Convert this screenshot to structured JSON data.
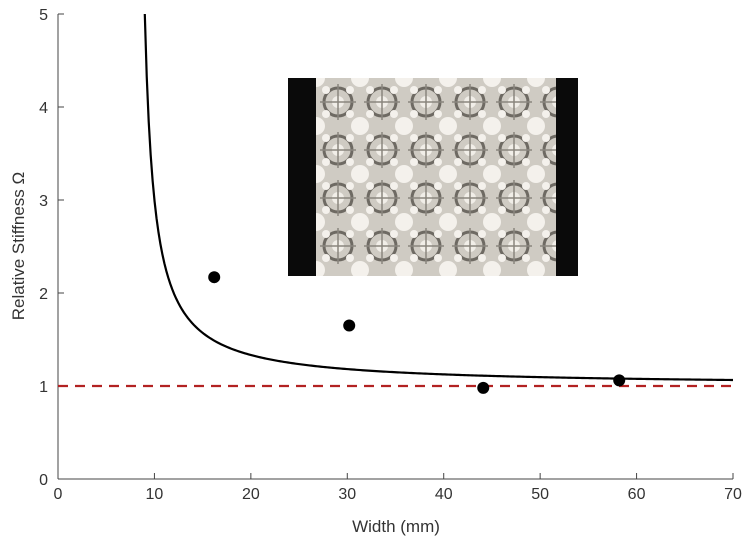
{
  "chart_data": {
    "type": "scatter",
    "xlabel": "Width (mm)",
    "ylabel": "Relative Stiffness Ω",
    "xlim": [
      0,
      70
    ],
    "ylim": [
      0,
      5
    ],
    "x_ticks": [
      0,
      10,
      20,
      30,
      40,
      50,
      60,
      70
    ],
    "y_ticks": [
      0,
      1,
      2,
      3,
      4,
      5
    ],
    "grid": false,
    "series": [
      {
        "type": "scatter",
        "color": "#000000",
        "points": [
          {
            "x": 16.2,
            "y": 2.17
          },
          {
            "x": 30.2,
            "y": 1.65
          },
          {
            "x": 44.1,
            "y": 0.98
          },
          {
            "x": 58.2,
            "y": 1.06
          }
        ]
      },
      {
        "type": "line",
        "color": "#000000",
        "curve": "1 + a / (x - b)",
        "a": 4.0,
        "b": 8.0,
        "x_range": [
          9.0,
          70.0
        ]
      },
      {
        "type": "reference-line",
        "color": "#b22222",
        "dash": "dashed",
        "y": 1.0
      }
    ],
    "inset": {
      "kind": "photo",
      "subject": "3D-printed lattice specimen"
    }
  }
}
